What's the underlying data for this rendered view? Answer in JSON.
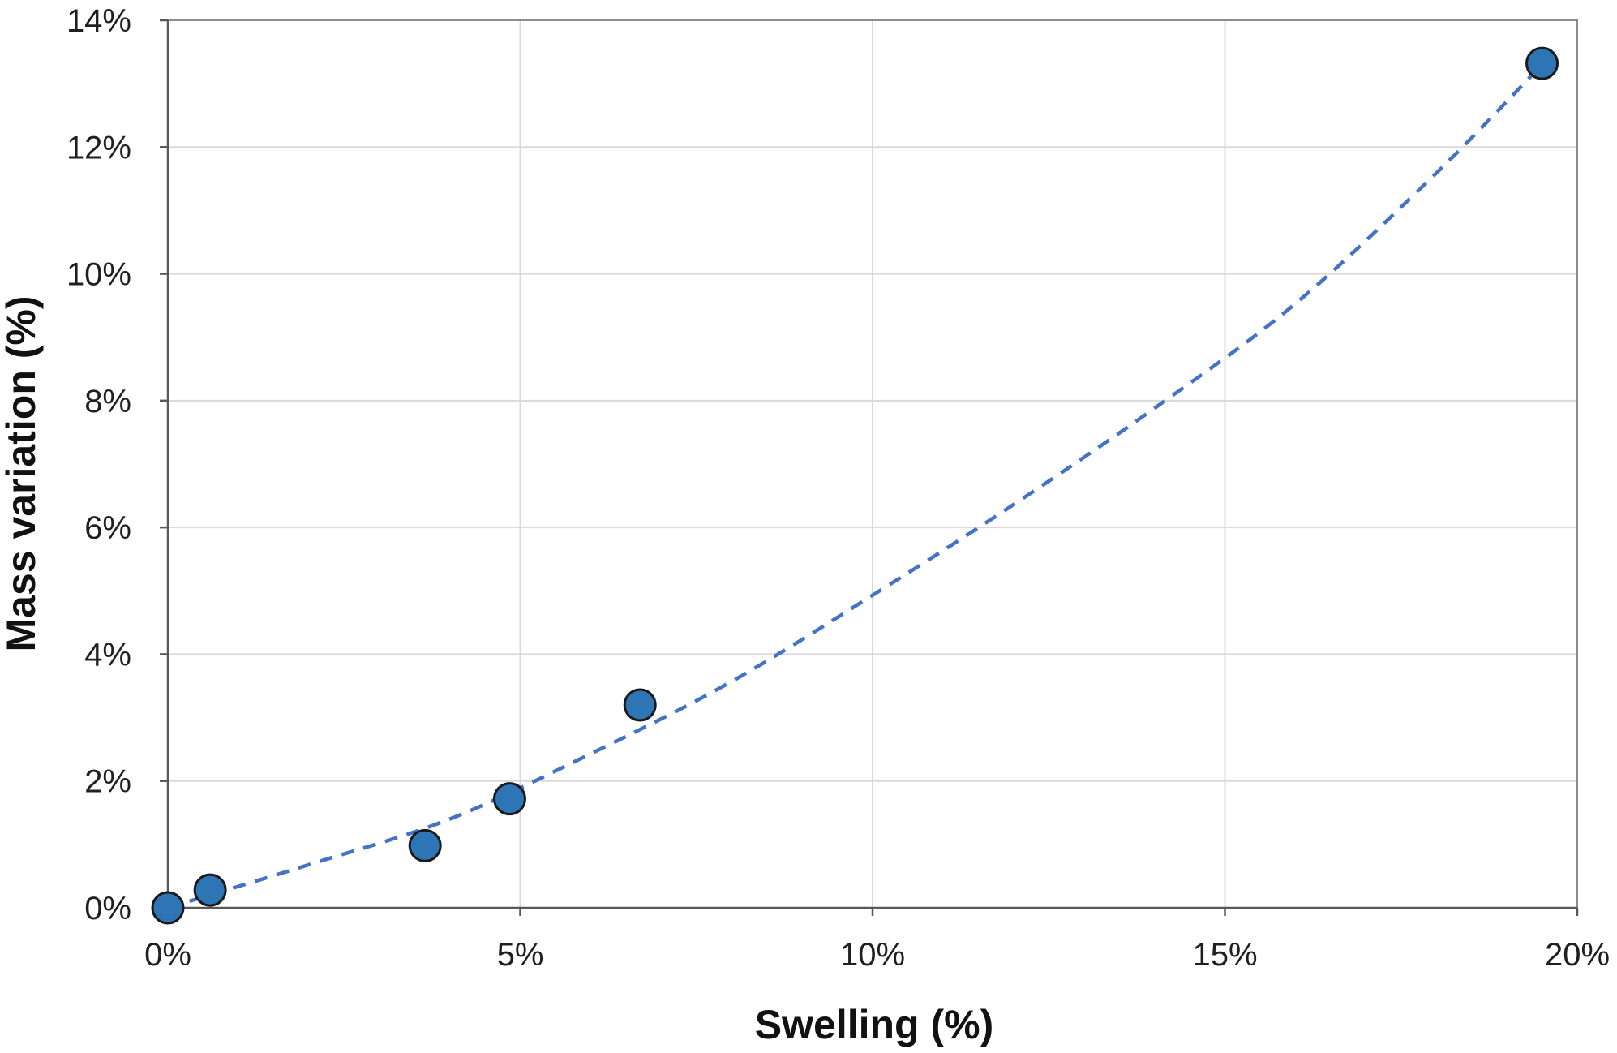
{
  "chart_data": {
    "type": "scatter",
    "title": "",
    "xlabel": "Swelling (%)",
    "ylabel": "Mass variation (%)",
    "xlim": [
      0,
      20
    ],
    "ylim": [
      0,
      14
    ],
    "x_ticks": [
      0,
      5,
      10,
      15,
      20
    ],
    "x_tick_labels": [
      "0%",
      "5%",
      "10%",
      "15%",
      "20%"
    ],
    "y_ticks": [
      0,
      2,
      4,
      6,
      8,
      10,
      12,
      14
    ],
    "y_tick_labels": [
      "0%",
      "2%",
      "4%",
      "6%",
      "8%",
      "10%",
      "12%",
      "14%"
    ],
    "grid": true,
    "legend": "none",
    "series": [
      {
        "marker": "circle",
        "color": "#2e75b6",
        "edge_color": "#1a1a1a",
        "points": [
          {
            "x": 0.0,
            "y": 0.0
          },
          {
            "x": 0.6,
            "y": 0.28
          },
          {
            "x": 3.65,
            "y": 0.98
          },
          {
            "x": 4.85,
            "y": 1.72
          },
          {
            "x": 6.7,
            "y": 3.2
          },
          {
            "x": 19.5,
            "y": 13.32
          }
        ]
      }
    ],
    "trendline": {
      "type": "polynomial",
      "style": "dashed",
      "color": "#4472c4",
      "x_range": [
        0,
        19.5
      ],
      "points": [
        {
          "x": 0,
          "y": 0
        },
        {
          "x": 2,
          "y": 0.68
        },
        {
          "x": 4,
          "y": 1.4
        },
        {
          "x": 6,
          "y": 2.43
        },
        {
          "x": 8,
          "y": 3.57
        },
        {
          "x": 10,
          "y": 4.93
        },
        {
          "x": 12,
          "y": 6.36
        },
        {
          "x": 14,
          "y": 7.88
        },
        {
          "x": 16,
          "y": 9.53
        },
        {
          "x": 18,
          "y": 11.59
        },
        {
          "x": 19.5,
          "y": 13.3
        }
      ]
    }
  }
}
